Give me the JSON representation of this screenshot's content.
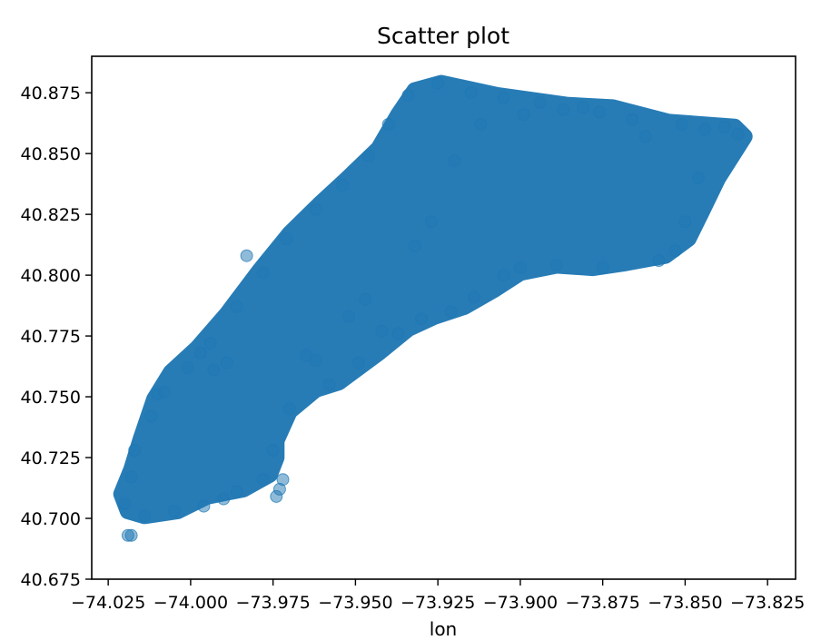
{
  "chart_data": {
    "type": "scatter",
    "title": "Scatter plot",
    "xlabel": "lon",
    "ylabel": "",
    "xlim": [
      -74.03,
      -73.8165
    ],
    "ylim": [
      40.675,
      40.89
    ],
    "grid": false,
    "legend": "none",
    "xticks": [
      -74.025,
      -74.0,
      -73.975,
      -73.95,
      -73.925,
      -73.9,
      -73.875,
      -73.85,
      -73.825
    ],
    "xtick_labels": [
      "−74.025",
      "−74.000",
      "−73.975",
      "−73.950",
      "−73.925",
      "−73.900",
      "−73.875",
      "−73.850",
      "−73.825"
    ],
    "yticks": [
      40.675,
      40.7,
      40.725,
      40.75,
      40.775,
      40.8,
      40.825,
      40.85,
      40.875
    ],
    "ytick_labels": [
      "40.675",
      "40.700",
      "40.725",
      "40.750",
      "40.775",
      "40.800",
      "40.825",
      "40.850",
      "40.875"
    ],
    "marker_color": "#1f77b4",
    "marker_alpha": 0.5,
    "dense_region_outline": [
      [
        -74.019,
        40.703
      ],
      [
        -74.014,
        40.701
      ],
      [
        -74.004,
        40.703
      ],
      [
        -73.995,
        40.709
      ],
      [
        -73.984,
        40.712
      ],
      [
        -73.976,
        40.718
      ],
      [
        -73.974,
        40.725
      ],
      [
        -73.974,
        40.732
      ],
      [
        -73.97,
        40.744
      ],
      [
        -73.962,
        40.753
      ],
      [
        -73.955,
        40.756
      ],
      [
        -73.943,
        40.768
      ],
      [
        -73.934,
        40.778
      ],
      [
        -73.926,
        40.783
      ],
      [
        -73.917,
        40.787
      ],
      [
        -73.908,
        40.794
      ],
      [
        -73.9,
        40.801
      ],
      [
        -73.889,
        40.804
      ],
      [
        -73.878,
        40.803
      ],
      [
        -73.868,
        40.805
      ],
      [
        -73.856,
        40.808
      ],
      [
        -73.849,
        40.815
      ],
      [
        -73.845,
        40.826
      ],
      [
        -73.84,
        40.84
      ],
      [
        -73.832,
        40.857
      ],
      [
        -73.835,
        40.861
      ],
      [
        -73.855,
        40.863
      ],
      [
        -73.872,
        40.869
      ],
      [
        -73.886,
        40.87
      ],
      [
        -73.907,
        40.874
      ],
      [
        -73.924,
        40.879
      ],
      [
        -73.932,
        40.876
      ],
      [
        -73.937,
        40.866
      ],
      [
        -73.943,
        40.852
      ],
      [
        -73.953,
        40.839
      ],
      [
        -73.961,
        40.829
      ],
      [
        -73.97,
        40.817
      ],
      [
        -73.979,
        40.802
      ],
      [
        -73.989,
        40.784
      ],
      [
        -73.998,
        40.77
      ],
      [
        -74.006,
        40.76
      ],
      [
        -74.011,
        40.749
      ],
      [
        -74.015,
        40.733
      ],
      [
        -74.018,
        40.72
      ],
      [
        -74.021,
        40.71
      ]
    ],
    "points": [
      [
        -74.018,
        40.693
      ],
      [
        -74.019,
        40.693
      ],
      [
        -73.983,
        40.808
      ],
      [
        -73.905,
        40.8
      ],
      [
        -73.942,
        40.777
      ],
      [
        -73.972,
        40.716
      ],
      [
        -73.973,
        40.712
      ],
      [
        -73.974,
        40.709
      ],
      [
        -73.996,
        40.705
      ],
      [
        -73.99,
        40.708
      ],
      [
        -74.01,
        40.751
      ],
      [
        -73.997,
        40.768
      ],
      [
        -73.993,
        40.761
      ],
      [
        -73.989,
        40.764
      ],
      [
        -73.965,
        40.767
      ],
      [
        -73.962,
        40.765
      ],
      [
        -73.952,
        40.783
      ],
      [
        -73.947,
        40.79
      ],
      [
        -73.932,
        40.812
      ],
      [
        -73.927,
        40.822
      ],
      [
        -73.92,
        40.847
      ],
      [
        -73.912,
        40.862
      ],
      [
        -73.899,
        40.866
      ],
      [
        -73.887,
        40.868
      ],
      [
        -73.876,
        40.867
      ],
      [
        -73.866,
        40.864
      ],
      [
        -73.862,
        40.857
      ],
      [
        -73.851,
        40.862
      ],
      [
        -73.844,
        40.86
      ],
      [
        -73.838,
        40.861
      ],
      [
        -73.834,
        40.858
      ],
      [
        -73.846,
        40.84
      ],
      [
        -73.85,
        40.822
      ],
      [
        -73.853,
        40.81
      ],
      [
        -73.858,
        40.806
      ],
      [
        -73.875,
        40.803
      ],
      [
        -73.889,
        40.804
      ],
      [
        -73.9,
        40.803
      ],
      [
        -73.914,
        40.791
      ],
      [
        -73.921,
        40.785
      ],
      [
        -73.93,
        40.782
      ],
      [
        -73.937,
        40.776
      ],
      [
        -73.949,
        40.764
      ],
      [
        -73.958,
        40.755
      ],
      [
        -73.97,
        40.745
      ],
      [
        -73.975,
        40.728
      ],
      [
        -73.978,
        40.716
      ],
      [
        -73.986,
        40.711
      ],
      [
        -74.005,
        40.703
      ],
      [
        -74.014,
        40.701
      ],
      [
        -74.02,
        40.706
      ],
      [
        -74.018,
        40.717
      ],
      [
        -74.017,
        40.728
      ],
      [
        -74.012,
        40.742
      ],
      [
        -74.008,
        40.752
      ],
      [
        -74.001,
        40.762
      ],
      [
        -73.994,
        40.772
      ],
      [
        -73.986,
        40.787
      ],
      [
        -73.978,
        40.801
      ],
      [
        -73.971,
        40.815
      ],
      [
        -73.962,
        40.827
      ],
      [
        -73.954,
        40.837
      ],
      [
        -73.946,
        40.849
      ],
      [
        -73.94,
        40.862
      ],
      [
        -73.934,
        40.874
      ],
      [
        -73.925,
        40.879
      ],
      [
        -73.915,
        40.875
      ],
      [
        -73.905,
        40.873
      ],
      [
        -73.894,
        40.871
      ],
      [
        -73.881,
        40.869
      ]
    ]
  }
}
